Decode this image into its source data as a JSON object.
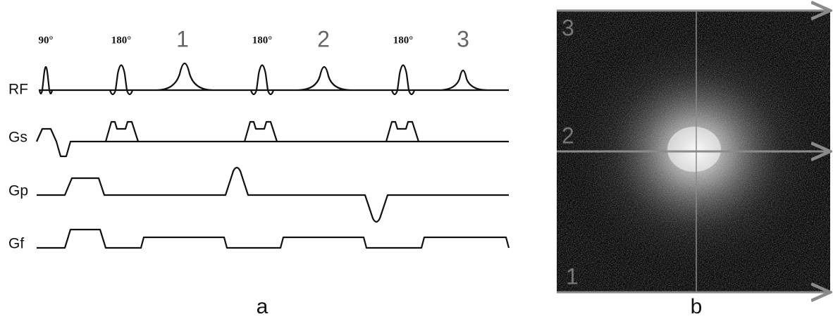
{
  "panel_a": {
    "rf_labels": [
      "90°",
      "180°",
      "180°",
      "180°"
    ],
    "echo_labels": [
      "1",
      "2",
      "3"
    ],
    "rows": [
      "RF",
      "Gs",
      "Gp",
      "Gf"
    ],
    "caption": "a"
  },
  "panel_b": {
    "line_labels": [
      "3",
      "2",
      "1"
    ],
    "caption": "b"
  }
}
